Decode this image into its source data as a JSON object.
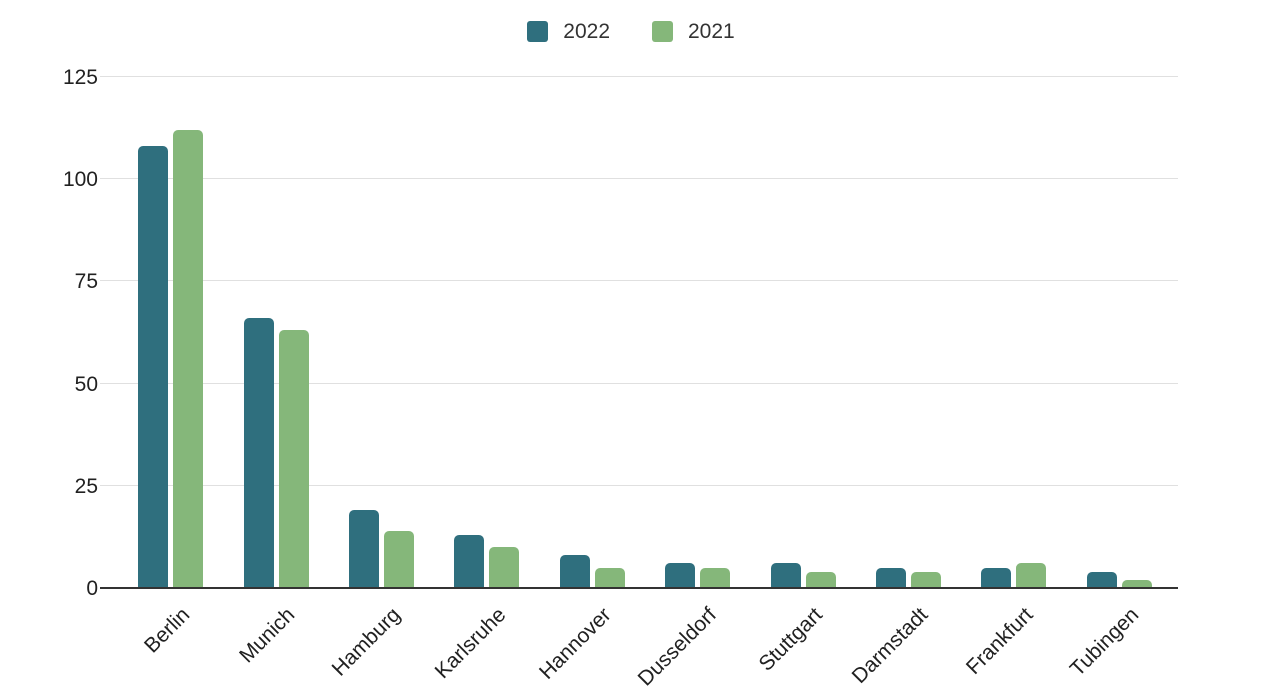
{
  "chart_data": {
    "type": "bar",
    "title": "",
    "xlabel": "",
    "ylabel": "",
    "categories": [
      "Berlin",
      "Munich",
      "Hamburg",
      "Karlsruhe",
      "Hannover",
      "Dusseldorf",
      "Stuttgart",
      "Darmstadt",
      "Frankfurt",
      "Tubingen"
    ],
    "series": [
      {
        "name": "2022",
        "color": "#2f6f7e",
        "values": [
          108,
          66,
          19,
          13,
          8,
          6,
          6,
          5,
          5,
          4
        ]
      },
      {
        "name": "2021",
        "color": "#85b77a",
        "values": [
          112,
          63,
          14,
          10,
          5,
          5,
          4,
          4,
          6,
          2
        ]
      }
    ],
    "ylim": [
      0,
      125
    ],
    "yticks": [
      0,
      25,
      50,
      75,
      100,
      125
    ],
    "grid": true,
    "legend_position": "top-center",
    "colors": {
      "grid_line": "#e0e0e0",
      "axis_line": "#333333",
      "tick_text": "#212121",
      "legend_text": "#333333",
      "background": "#ffffff"
    }
  }
}
